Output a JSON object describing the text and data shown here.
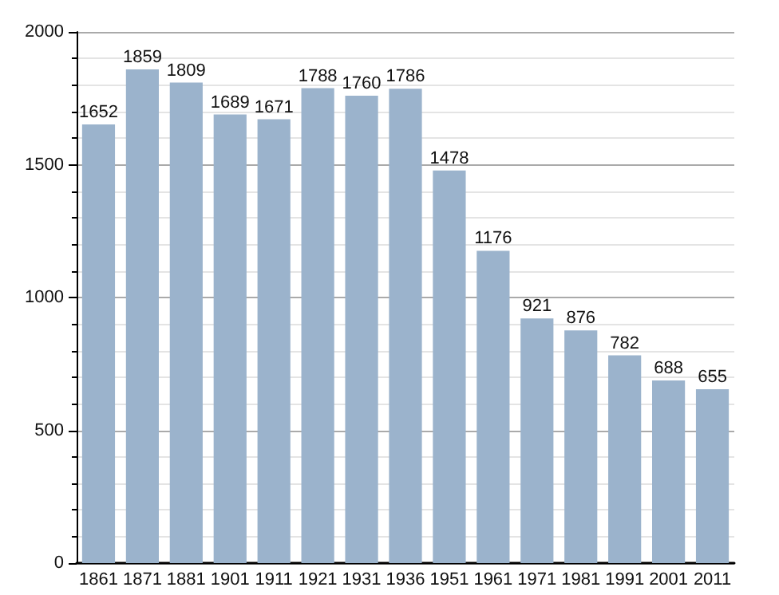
{
  "chart_data": {
    "type": "bar",
    "categories": [
      "1861",
      "1871",
      "1881",
      "1901",
      "1911",
      "1921",
      "1931",
      "1936",
      "1951",
      "1961",
      "1971",
      "1981",
      "1991",
      "2001",
      "2011"
    ],
    "values": [
      1652,
      1859,
      1809,
      1689,
      1671,
      1788,
      1760,
      1786,
      1478,
      1176,
      921,
      876,
      782,
      688,
      655
    ],
    "color": "#9bb3cc",
    "ylim": [
      0,
      2000
    ],
    "yticks": [
      0,
      500,
      1000,
      1500,
      2000
    ],
    "grid": "y",
    "data_labels": true
  }
}
